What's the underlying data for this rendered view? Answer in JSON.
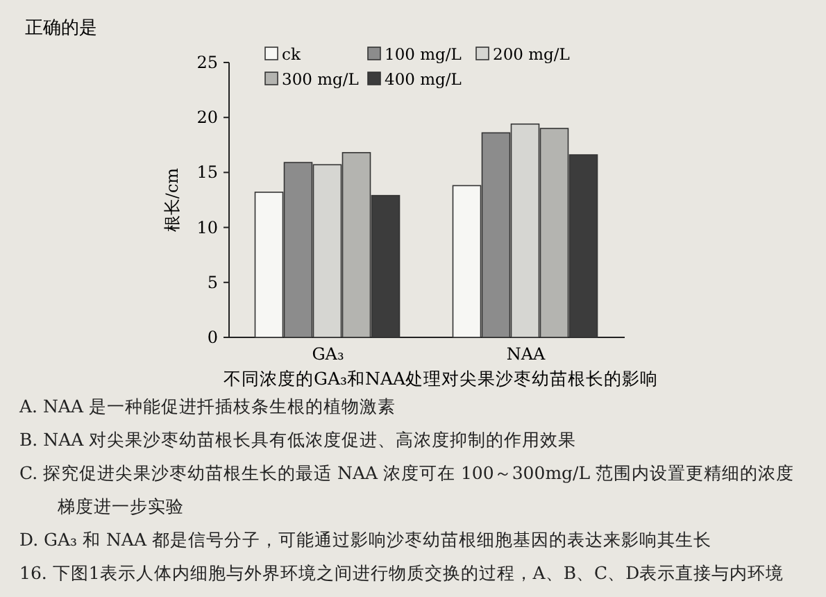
{
  "chart_data": {
    "type": "bar",
    "title": "不同浓度的GA₃和NAA处理对尖果沙枣幼苗根长的影响",
    "ylabel": "根长/cm",
    "categories": [
      "GA₃",
      "NAA"
    ],
    "series": [
      {
        "name": "ck",
        "color": "#f7f7f4",
        "values": [
          13.2,
          13.8
        ]
      },
      {
        "name": "100 mg/L",
        "color": "#8c8c8c",
        "values": [
          15.9,
          18.6
        ]
      },
      {
        "name": "200 mg/L",
        "color": "#d6d6d2",
        "values": [
          15.7,
          19.4
        ]
      },
      {
        "name": "300 mg/L",
        "color": "#b4b4b0",
        "values": [
          16.8,
          19.0
        ]
      },
      {
        "name": "400 mg/L",
        "color": "#3c3c3c",
        "values": [
          12.9,
          16.6
        ]
      }
    ],
    "ylim": [
      0,
      25
    ],
    "yticks": [
      0,
      5,
      10,
      15,
      20,
      25
    ],
    "legend": "top left",
    "grid": false,
    "annotations": [
      "正确的是",
      "A. NAA 是一种能促进扦插枝条生根的植物激素",
      "B. NAA 对尖果沙枣幼苗根长具有低浓度促进、高浓度抑制的作用效果",
      "C. 探究促进尖果沙枣幼苗根生长的最适 NAA 浓度可在 100～300mg/L 范围内设置更精细的浓度梯度进一步实验",
      "D. GA₃ 和 NAA 都是信号分子，可能通过影响沙枣幼苗根细胞基因的表达来影响其生长",
      "16. 下图1表示人体内细胞与外界环境之间进行物质交换的过程，A、B、C、D表示直接与内环境"
    ]
  }
}
